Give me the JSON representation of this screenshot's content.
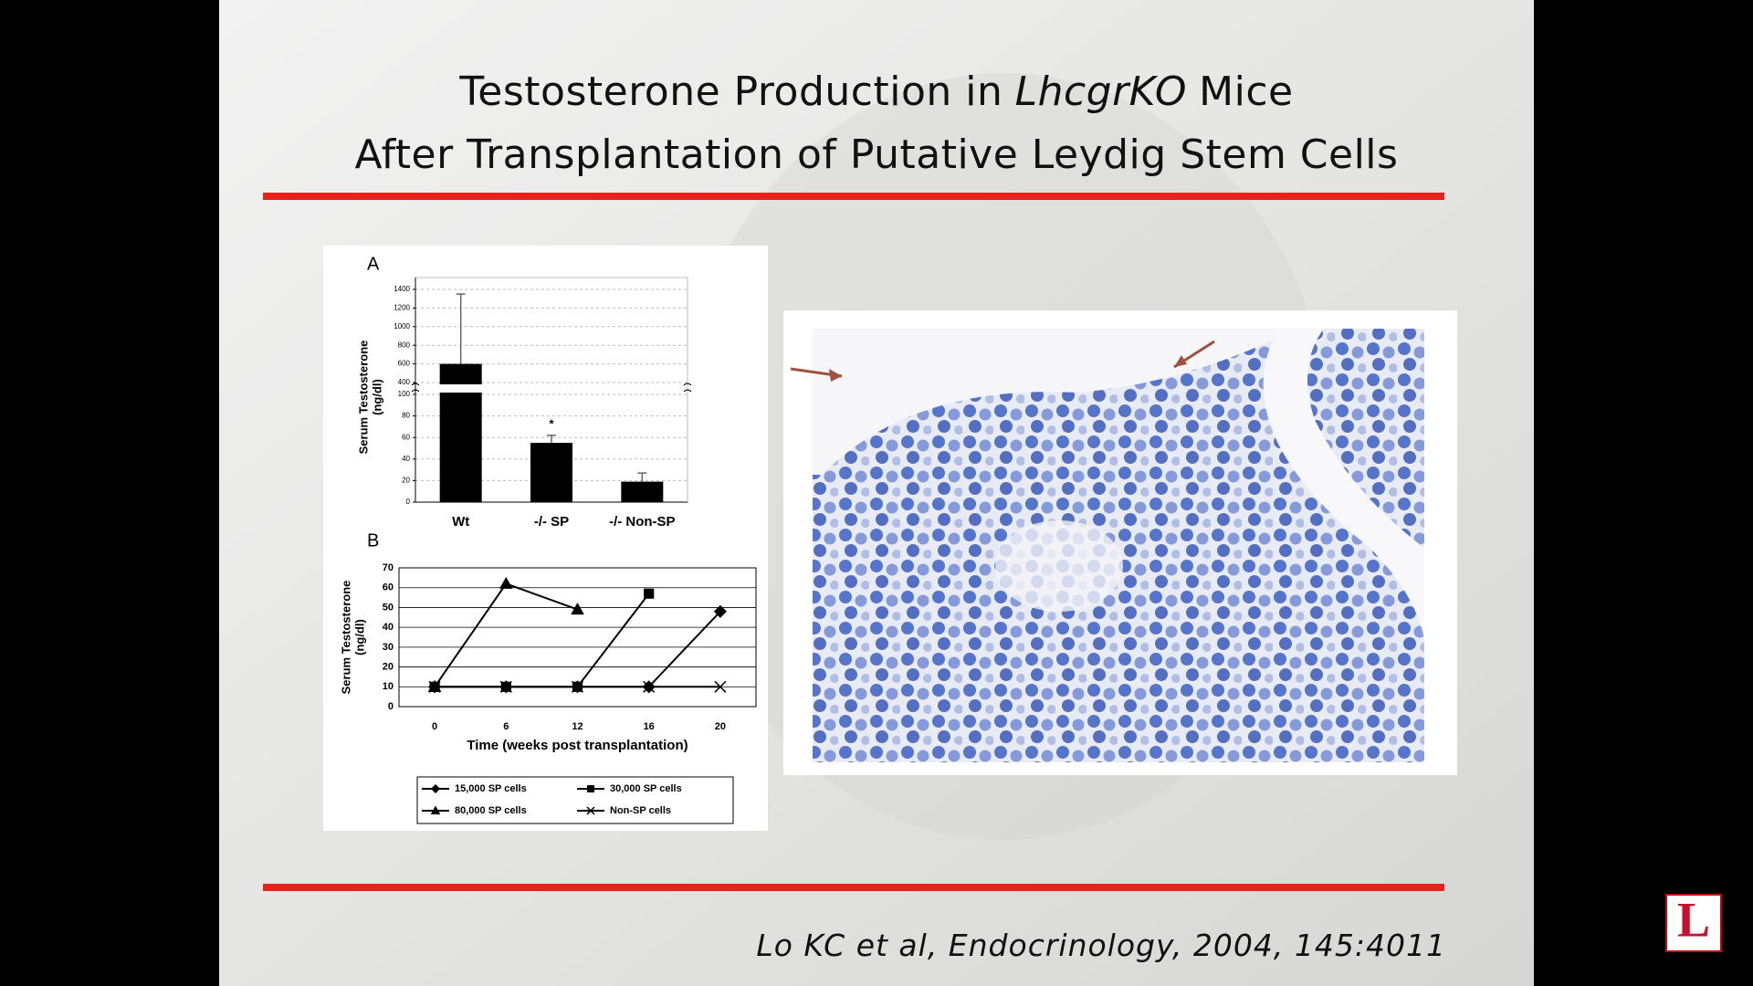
{
  "slide": {
    "title_line1": {
      "before": "Testosterone Production in",
      "italic": "LhcgrKO",
      "after": "Mice"
    },
    "title_line2": "After Transplantation of Putative Leydig Stem Cells",
    "citation": "Lo KC et al, Endocrinology, 2004, 145:4011",
    "logo": "L"
  },
  "chart_data": [
    {
      "type": "bar",
      "panel_label": "A",
      "y_label": [
        "Serum Testosterone",
        "(ng/dl)"
      ],
      "categories": [
        "Wt",
        "-/- SP",
        "-/- Non-SP"
      ],
      "values": [
        600,
        55,
        19
      ],
      "errors": [
        750,
        7,
        8
      ],
      "color": "#000000",
      "ylim": [
        0,
        1400
      ],
      "yticks": [
        0,
        20,
        40,
        60,
        80,
        100,
        400,
        600,
        800,
        1000,
        1200,
        1400
      ],
      "axis_break": [
        100,
        400
      ],
      "grid": true,
      "annotation": "*"
    },
    {
      "type": "line",
      "panel_label": "B",
      "y_label": [
        "Serum Testosterone",
        "(ng/dl)"
      ],
      "x_label": "Time (weeks post transplantation)",
      "categories": [
        "0",
        "6",
        "12",
        "16",
        "20"
      ],
      "ylim": [
        0,
        70
      ],
      "yticks": [
        0,
        10,
        20,
        30,
        40,
        50,
        60,
        70
      ],
      "grid": true,
      "series": [
        {
          "name": "15,000 SP cells",
          "color": "#000000",
          "marker": "diamond",
          "values": [
            10,
            10,
            10,
            10,
            48
          ]
        },
        {
          "name": "30,000 SP cells",
          "color": "#000000",
          "marker": "square",
          "values": [
            10,
            10,
            10,
            57,
            null
          ]
        },
        {
          "name": "80,000 SP cells",
          "color": "#000000",
          "marker": "triangle",
          "values": [
            10,
            62,
            49,
            null,
            null
          ]
        },
        {
          "name": "Non-SP cells",
          "color": "#000000",
          "marker": "x",
          "values": [
            10,
            10,
            10,
            10,
            10
          ]
        }
      ]
    }
  ]
}
